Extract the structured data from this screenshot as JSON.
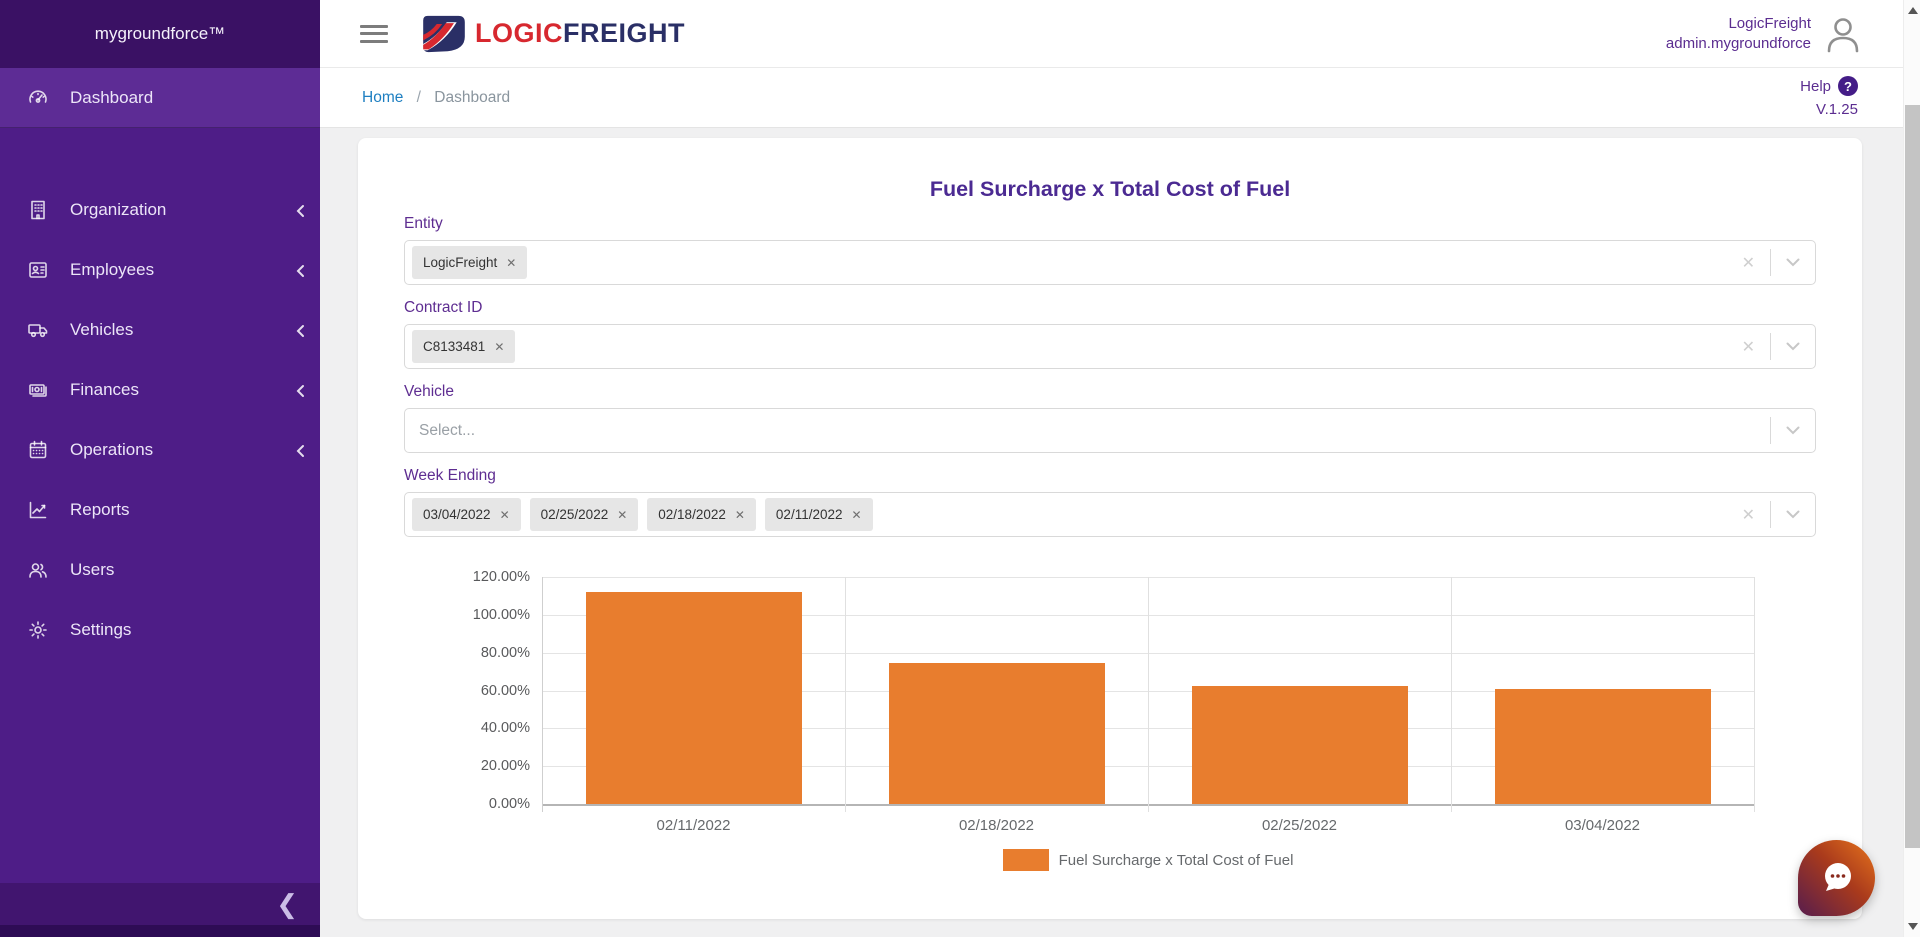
{
  "app": {
    "brand": "mygroundforce™",
    "logo_word_1": "LOGIC",
    "logo_word_2": "FREIGHT"
  },
  "header": {
    "account_name": "LogicFreight",
    "account_user": "admin.mygroundforce",
    "help_label": "Help",
    "help_badge": "?",
    "version": "V.1.25"
  },
  "breadcrumb": {
    "home": "Home",
    "separator": "/",
    "current": "Dashboard"
  },
  "sidebar": {
    "items": [
      {
        "label": "Dashboard",
        "icon": "gauge-icon",
        "active": true,
        "has_chevron": false
      },
      {
        "label": "Organization",
        "icon": "building-icon",
        "active": false,
        "has_chevron": true
      },
      {
        "label": "Employees",
        "icon": "id-card-icon",
        "active": false,
        "has_chevron": true
      },
      {
        "label": "Vehicles",
        "icon": "truck-icon",
        "active": false,
        "has_chevron": true
      },
      {
        "label": "Finances",
        "icon": "banknote-icon",
        "active": false,
        "has_chevron": true
      },
      {
        "label": "Operations",
        "icon": "calendar-icon",
        "active": false,
        "has_chevron": true
      },
      {
        "label": "Reports",
        "icon": "line-chart-icon",
        "active": false,
        "has_chevron": false
      },
      {
        "label": "Users",
        "icon": "users-icon",
        "active": false,
        "has_chevron": false
      },
      {
        "label": "Settings",
        "icon": "gear-icon",
        "active": false,
        "has_chevron": false
      }
    ],
    "collapse_glyph": "❮"
  },
  "page": {
    "title": "Fuel Surcharge x Total Cost of Fuel"
  },
  "filters": [
    {
      "label": "Entity",
      "chips": [
        "LogicFreight"
      ],
      "placeholder": "",
      "clearable": true
    },
    {
      "label": "Contract ID",
      "chips": [
        "C8133481"
      ],
      "placeholder": "",
      "clearable": true
    },
    {
      "label": "Vehicle",
      "chips": [],
      "placeholder": "Select...",
      "clearable": false
    },
    {
      "label": "Week Ending",
      "chips": [
        "03/04/2022",
        "02/25/2022",
        "02/18/2022",
        "02/11/2022"
      ],
      "placeholder": "",
      "clearable": true
    }
  ],
  "chart_data": {
    "type": "bar",
    "title": "Fuel Surcharge x Total Cost of Fuel",
    "categories": [
      "02/11/2022",
      "02/18/2022",
      "02/25/2022",
      "03/04/2022"
    ],
    "series": [
      {
        "name": "Fuel Surcharge x Total Cost of Fuel",
        "values": [
          111.9,
          74.8,
          62.3,
          61.0
        ]
      }
    ],
    "ylim": [
      0,
      120
    ],
    "ytick_step": 20,
    "ytick_labels": [
      "0.00%",
      "20.00%",
      "40.00%",
      "60.00%",
      "80.00%",
      "100.00%",
      "120.00%"
    ],
    "bar_color": "#e87d2e",
    "grid": true,
    "legend_position": "bottom",
    "legend_label": "Fuel Surcharge x Total Cost of Fuel"
  },
  "colors": {
    "sidebar_bg": "#4e1d87",
    "sidebar_header_bg": "#3a1164",
    "sidebar_active_bg": "#5d2c95",
    "accent_purple": "#5b2d90",
    "link_blue": "#1e7fc1",
    "bar_orange": "#e87d2e",
    "logo_red": "#d7282f",
    "logo_navy": "#2a2f66"
  }
}
